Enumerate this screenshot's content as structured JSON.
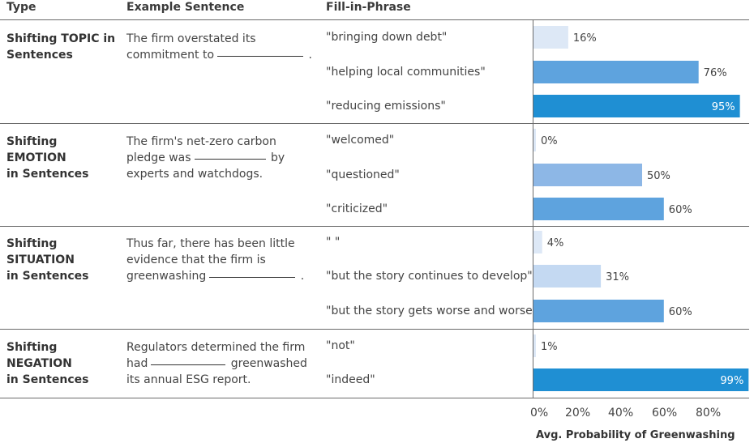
{
  "headers": {
    "type": "Type",
    "sentence": "Example Sentence",
    "phrase": "Fill-in-Phrase"
  },
  "groups": [
    {
      "type_line1": "Shifting TOPIC in",
      "type_line2": "Sentences",
      "sentence": {
        "line1": "The firm overstated its",
        "line2_pre": "commitment to",
        "line2_post": ".",
        "line3": ""
      }
    },
    {
      "type_line1": "Shifting EMOTION",
      "type_line2": "in Sentences",
      "sentence": {
        "line1": "The firm's net-zero carbon",
        "line2_pre": "pledge was",
        "line2_post": "by",
        "line3": "experts and watchdogs."
      }
    },
    {
      "type_line1": "Shifting SITUATION",
      "type_line2": "in Sentences",
      "sentence": {
        "line1": "Thus far, there has been little",
        "line2": "evidence that the firm is",
        "line3_pre": "greenwashing",
        "line3_post": "."
      }
    },
    {
      "type_line1": "Shifting NEGATION",
      "type_line2": "in Sentences",
      "sentence": {
        "line1": "Regulators determined the firm",
        "line2_pre": "had",
        "line2_post": "greenwashed",
        "line3": "its annual ESG report."
      }
    }
  ],
  "chart_data": {
    "type": "bar",
    "orientation": "horizontal",
    "categories": [
      "\"bringing down debt\"",
      "\"helping local communities\"",
      "\"reducing emissions\"",
      "\"welcomed\"",
      "\"questioned\"",
      "\"criticized\"",
      "\"  \"",
      "\"but the story continues to develop\"",
      "\"but the story gets worse and worse\"",
      "\"not\"",
      "\"indeed\""
    ],
    "values": [
      16,
      76,
      95,
      0,
      50,
      60,
      4,
      31,
      60,
      1,
      99
    ],
    "value_labels": [
      "16%",
      "76%",
      "95%",
      "0%",
      "50%",
      "60%",
      "4%",
      "31%",
      "60%",
      "1%",
      "99%"
    ],
    "xlabel": "Avg. Probability of Greenwashing",
    "xticks": [
      "0%",
      "20%",
      "40%",
      "60%",
      "80%"
    ],
    "xlim": [
      0,
      100
    ],
    "colors": {
      "low": "#d6e3f5",
      "mid": "#8db7e6",
      "high": "#5ea3de",
      "top": "#1f8fd3",
      "label_light": "#ffffff",
      "label_dark": "#444444"
    }
  }
}
